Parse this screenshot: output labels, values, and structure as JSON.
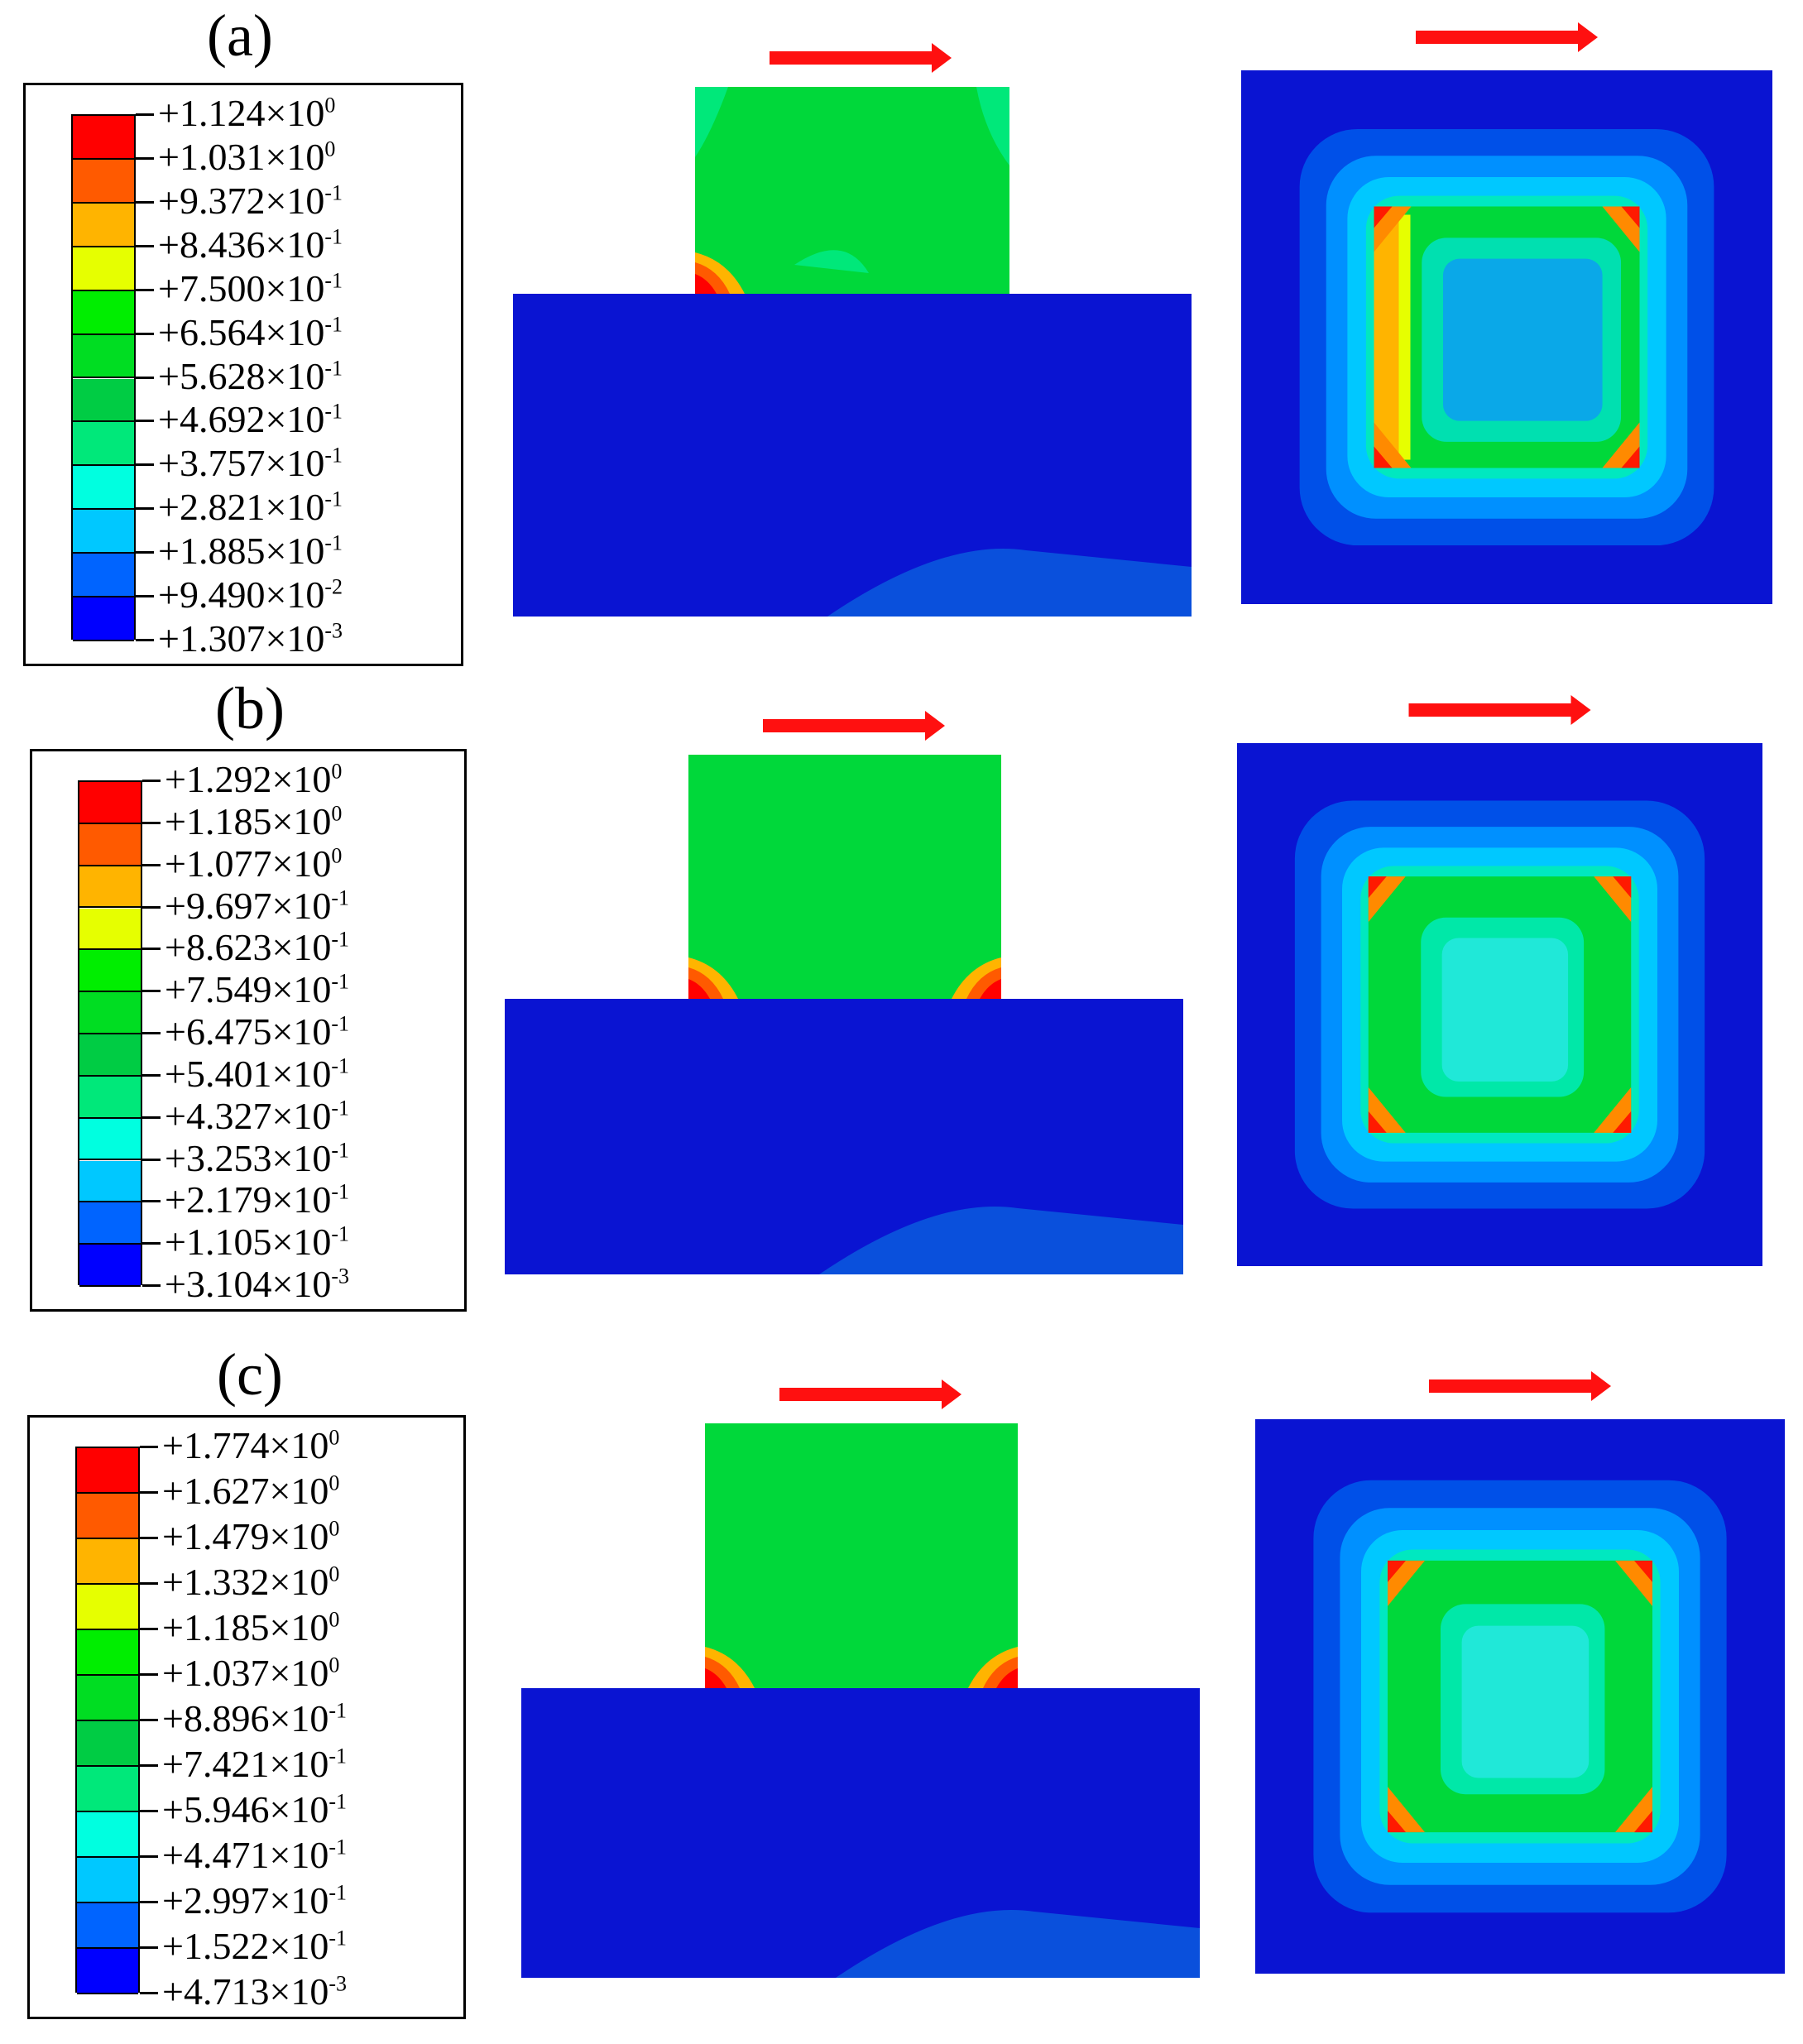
{
  "panels": [
    {
      "label": "(a)",
      "legend": [
        {
          "mantissa": "+1.124×10",
          "exp": "0"
        },
        {
          "mantissa": "+1.031×10",
          "exp": "0"
        },
        {
          "mantissa": "+9.372×10",
          "exp": "-1"
        },
        {
          "mantissa": "+8.436×10",
          "exp": "-1"
        },
        {
          "mantissa": "+7.500×10",
          "exp": "-1"
        },
        {
          "mantissa": "+6.564×10",
          "exp": "-1"
        },
        {
          "mantissa": "+5.628×10",
          "exp": "-1"
        },
        {
          "mantissa": "+4.692×10",
          "exp": "-1"
        },
        {
          "mantissa": "+3.757×10",
          "exp": "-1"
        },
        {
          "mantissa": "+2.821×10",
          "exp": "-1"
        },
        {
          "mantissa": "+1.885×10",
          "exp": "-1"
        },
        {
          "mantissa": "+9.490×10",
          "exp": "-2"
        },
        {
          "mantissa": "+1.307×10",
          "exp": "-3"
        }
      ]
    },
    {
      "label": "(b)",
      "legend": [
        {
          "mantissa": "+1.292×10",
          "exp": "0"
        },
        {
          "mantissa": "+1.185×10",
          "exp": "0"
        },
        {
          "mantissa": "+1.077×10",
          "exp": "0"
        },
        {
          "mantissa": "+9.697×10",
          "exp": "-1"
        },
        {
          "mantissa": "+8.623×10",
          "exp": "-1"
        },
        {
          "mantissa": "+7.549×10",
          "exp": "-1"
        },
        {
          "mantissa": "+6.475×10",
          "exp": "-1"
        },
        {
          "mantissa": "+5.401×10",
          "exp": "-1"
        },
        {
          "mantissa": "+4.327×10",
          "exp": "-1"
        },
        {
          "mantissa": "+3.253×10",
          "exp": "-1"
        },
        {
          "mantissa": "+2.179×10",
          "exp": "-1"
        },
        {
          "mantissa": "+1.105×10",
          "exp": "-1"
        },
        {
          "mantissa": "+3.104×10",
          "exp": "-3"
        }
      ]
    },
    {
      "label": "(c)",
      "legend": [
        {
          "mantissa": "+1.774×10",
          "exp": "0"
        },
        {
          "mantissa": "+1.627×10",
          "exp": "0"
        },
        {
          "mantissa": "+1.479×10",
          "exp": "0"
        },
        {
          "mantissa": "+1.332×10",
          "exp": "0"
        },
        {
          "mantissa": "+1.185×10",
          "exp": "0"
        },
        {
          "mantissa": "+1.037×10",
          "exp": "0"
        },
        {
          "mantissa": "+8.896×10",
          "exp": "-1"
        },
        {
          "mantissa": "+7.421×10",
          "exp": "-1"
        },
        {
          "mantissa": "+5.946×10",
          "exp": "-1"
        },
        {
          "mantissa": "+4.471×10",
          "exp": "-1"
        },
        {
          "mantissa": "+2.997×10",
          "exp": "-1"
        },
        {
          "mantissa": "+1.522×10",
          "exp": "-1"
        },
        {
          "mantissa": "+4.713×10",
          "exp": "-3"
        }
      ]
    }
  ],
  "colormap": [
    "#ff0000",
    "#ff5a00",
    "#ffb400",
    "#e6ff00",
    "#00ee00",
    "#00dd22",
    "#00cc44",
    "#00e87a",
    "#00ffe0",
    "#00c8ff",
    "#0064ff",
    "#0000ff"
  ],
  "colors": {
    "background_blue": "#0a14d2",
    "block_green": "#00d83a",
    "arrow": "#ff1010",
    "faint_blue": "#0a50dc"
  }
}
